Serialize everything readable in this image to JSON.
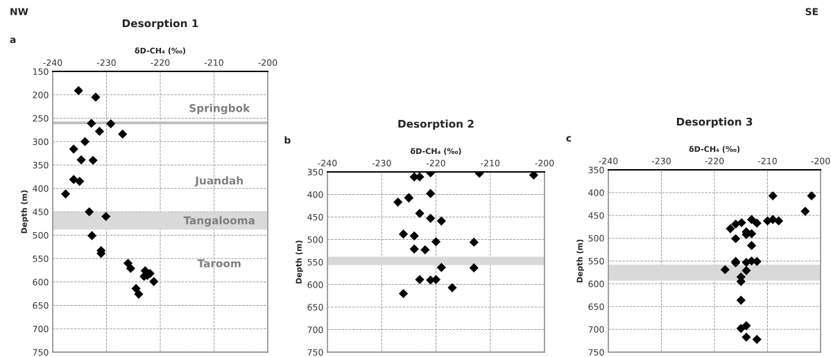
{
  "chart_data": [
    {
      "type": "scatter",
      "title": "Desorption 1",
      "xlabel": "δD-CH₄ (‰)",
      "ylabel": "Depth (m)",
      "annotations": [
        "a",
        "NW",
        "Springbok",
        "Juandah",
        "Tangalooma",
        "Taroom"
      ],
      "series": [
        {
          "color": "#000000",
          "x": [
            -235.2,
            -232.0,
            -232.8,
            -229.2,
            -231.3,
            -227.0,
            -234.0,
            -236.1,
            -234.7,
            -232.5,
            -236.1,
            -235.0,
            -237.6,
            -233.2,
            -230.1,
            -232.7,
            -231.0,
            -231.0,
            -226.0,
            -225.5,
            -222.8,
            -221.9,
            -223.0,
            -222.4,
            -221.2,
            -224.5,
            -224.0
          ],
          "values": [
            191,
            205,
            261,
            262,
            278,
            284,
            300,
            316,
            339,
            340,
            381,
            385,
            412,
            450,
            460,
            501,
            533,
            539,
            560,
            571,
            576,
            582,
            588,
            586,
            599,
            614,
            626
          ]
        }
      ],
      "xlim": [
        -240,
        -200
      ],
      "xticks": [
        -240,
        -230,
        -220,
        -210,
        -200
      ],
      "ylim": [
        750,
        150
      ],
      "yticks": [
        150,
        200,
        250,
        300,
        350,
        400,
        450,
        500,
        550,
        600,
        650,
        700,
        750
      ],
      "ref_lines": [
        {
          "axis": "y",
          "value": 260,
          "color": "#bfbfbf"
        }
      ],
      "bands": [
        {
          "axis": "y",
          "from": 450,
          "to": 488,
          "color": "#d9d9d9"
        }
      ],
      "grid": true,
      "marker": "diamond"
    },
    {
      "type": "scatter",
      "title": "Desorption 2",
      "xlabel": "δD-CH₄ (‰)",
      "ylabel": "Depth (m)",
      "annotations": [
        "b"
      ],
      "series": [
        {
          "color": "#000000",
          "x": [
            -221,
            -212,
            -202,
            -224,
            -223,
            -221,
            -225,
            -225,
            -227,
            -223,
            -221,
            -219,
            -226,
            -224,
            -220,
            -213,
            -224,
            -222,
            -219,
            -213,
            -223,
            -221,
            -220,
            -217,
            -226
          ],
          "values": [
            352,
            353,
            357,
            361,
            361,
            398,
            407,
            408,
            417,
            442,
            453,
            459,
            488,
            492,
            505,
            506,
            521,
            523,
            562,
            563,
            589,
            590,
            589,
            607,
            620
          ]
        }
      ],
      "xlim": [
        -240,
        -200
      ],
      "xticks": [
        -240,
        -230,
        -220,
        -210,
        -200
      ],
      "ylim": [
        750,
        350
      ],
      "yticks": [
        350,
        400,
        450,
        500,
        550,
        600,
        650,
        700,
        750
      ],
      "bands": [
        {
          "axis": "y",
          "from": 538,
          "to": 557,
          "color": "#d9d9d9"
        }
      ],
      "grid": true,
      "marker": "diamond"
    },
    {
      "type": "scatter",
      "title": "Desorption 3",
      "xlabel": "δD-CH₄ (‰)",
      "ylabel": "Depth (m)",
      "annotations": [
        "c",
        "SE"
      ],
      "series": [
        {
          "color": "#000000",
          "x": [
            -209.0,
            -201.7,
            -202.9,
            -210.0,
            -209.0,
            -207.9,
            -213.0,
            -212.0,
            -214.9,
            -216.0,
            -217.0,
            -214.0,
            -214.0,
            -213.0,
            -216.0,
            -213.0,
            -216.0,
            -216.0,
            -214.0,
            -213.0,
            -212.0,
            -218.0,
            -214.0,
            -215.0,
            -215.0,
            -215.0,
            -215.0,
            -214.0,
            -214.0,
            -212.0
          ],
          "values": [
            407,
            407,
            441,
            462,
            459,
            462,
            459,
            467,
            466,
            469,
            479,
            486,
            492,
            490,
            501,
            516,
            551,
            554,
            553,
            550,
            551,
            569,
            571,
            585,
            595,
            636,
            698,
            692,
            717,
            722
          ]
        }
      ],
      "xlim": [
        -240,
        -200
      ],
      "xticks": [
        -240,
        -230,
        -220,
        -210,
        -200
      ],
      "ylim": [
        750,
        350
      ],
      "yticks": [
        350,
        400,
        450,
        500,
        550,
        600,
        650,
        700,
        750
      ],
      "bands": [
        {
          "axis": "y",
          "from": 558,
          "to": 593,
          "color": "#d9d9d9"
        }
      ],
      "grid": true,
      "marker": "diamond"
    }
  ]
}
